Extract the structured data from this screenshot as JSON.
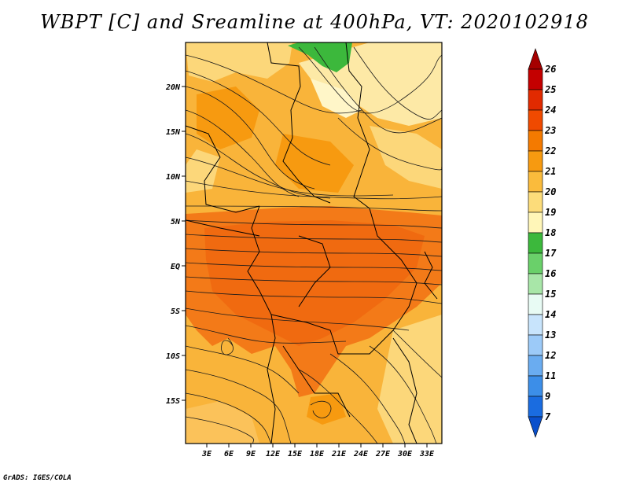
{
  "title": "WBPT [C] and Sreamline at 400hPa, VT: 2020102918",
  "credit": "GrADS: IGES/COLA",
  "map": {
    "lat_labels": [
      "20N",
      "15N",
      "10N",
      "5N",
      "EQ",
      "5S",
      "10S",
      "15S"
    ],
    "lon_labels": [
      "3E",
      "6E",
      "9E",
      "12E",
      "15E",
      "18E",
      "21E",
      "24E",
      "27E",
      "30E",
      "33E"
    ]
  },
  "colorbar": {
    "labels": [
      "26",
      "25",
      "24",
      "23",
      "22",
      "21",
      "20",
      "19",
      "18",
      "17",
      "16",
      "15",
      "14",
      "13",
      "12",
      "11",
      "9",
      "7"
    ],
    "colors": [
      "#a50000",
      "#c40000",
      "#e12a00",
      "#f04a00",
      "#f47a00",
      "#f79a10",
      "#fabb3c",
      "#fcdc7a",
      "#fff6b8",
      "#3cb83c",
      "#6ad06a",
      "#a8e6a8",
      "#e8fbf4",
      "#c8e4fc",
      "#9ccaf8",
      "#6aacf0",
      "#3c8ee8",
      "#1a6ce0",
      "#0a50cc"
    ]
  }
}
